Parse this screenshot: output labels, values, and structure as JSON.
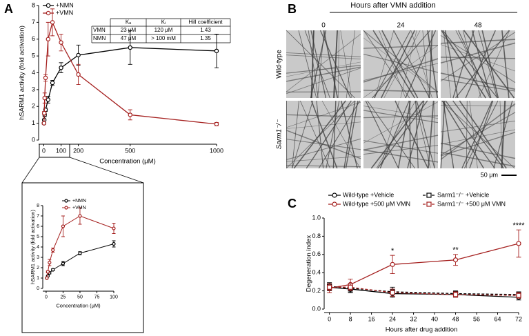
{
  "panel_labels": [
    "A",
    "B",
    "C"
  ],
  "chart_data": [
    {
      "type": "line",
      "ylabel": "hSARM1 activity (fold activation)",
      "xlabel": "Concentration (μM)",
      "x": [
        1,
        2.5,
        5,
        10,
        25,
        50,
        100,
        200,
        500,
        1000
      ],
      "xlim": [
        -30,
        1000
      ],
      "xticks": [
        0,
        100,
        200,
        500,
        1000
      ],
      "ylim": [
        0,
        8
      ],
      "yticks": [
        0,
        1,
        2,
        3,
        4,
        5,
        6,
        7,
        8
      ],
      "series": [
        {
          "name": "+NMN",
          "color": "#000000",
          "values": [
            1.0,
            1.2,
            1.5,
            1.8,
            2.4,
            3.4,
            4.3,
            5.05,
            5.5,
            5.3
          ],
          "errors": [
            0.05,
            0.05,
            0.1,
            0.1,
            0.2,
            0.15,
            0.3,
            0.6,
            1.0,
            1.0
          ]
        },
        {
          "name": "+VMN",
          "color": "#a5201f",
          "values": [
            1.0,
            1.6,
            2.5,
            3.7,
            6.0,
            7.0,
            5.8,
            3.9,
            1.5,
            0.95
          ],
          "errors": [
            0.05,
            0.1,
            0.3,
            0.2,
            1.0,
            0.8,
            0.5,
            0.6,
            0.3,
            0.1
          ]
        }
      ],
      "table": {
        "columns": [
          "Kₐ",
          "Kᵢ",
          "Hill coefficient"
        ],
        "rows": [
          [
            "VMN",
            "23 μM",
            "120 μM",
            "1.43"
          ],
          [
            "NMN",
            "47 μM",
            "> 100 mM",
            "1.35"
          ]
        ]
      }
    },
    {
      "type": "line",
      "ylabel": "hSARM1 activity (fold activation)",
      "xlabel": "Concentration (μM)",
      "x": [
        1,
        2.5,
        5,
        10,
        25,
        50,
        100
      ],
      "xlim": [
        -5,
        100
      ],
      "xticks": [
        0,
        25,
        50,
        75,
        100
      ],
      "ylim": [
        0,
        8
      ],
      "yticks": [
        0,
        1,
        2,
        3,
        4,
        5,
        6,
        7,
        8
      ],
      "series": [
        {
          "name": "+NMN",
          "color": "#000000",
          "values": [
            1.0,
            1.2,
            1.5,
            1.8,
            2.4,
            3.4,
            4.3
          ],
          "errors": [
            0.05,
            0.05,
            0.1,
            0.1,
            0.2,
            0.15,
            0.3
          ]
        },
        {
          "name": "+VMN",
          "color": "#a5201f",
          "values": [
            1.0,
            1.6,
            2.5,
            3.7,
            6.0,
            7.0,
            5.8
          ],
          "errors": [
            0.05,
            0.1,
            0.3,
            0.2,
            1.0,
            0.8,
            0.5
          ]
        }
      ]
    },
    {
      "type": "line",
      "ylabel": "Degeneration index",
      "xlabel": "Hours after drug addition",
      "x": [
        0,
        8,
        24,
        48,
        72
      ],
      "xlim": [
        -2,
        72
      ],
      "xticks": [
        0,
        8,
        16,
        24,
        32,
        40,
        48,
        56,
        64,
        72
      ],
      "ylim": [
        0,
        1
      ],
      "yticks": [
        {
          "value": 0,
          "label": "0.0"
        },
        0.2,
        0.4,
        0.6,
        0.8,
        {
          "value": 1,
          "label": "1.0"
        }
      ],
      "series": [
        {
          "name": "Wild-type +Vehicle",
          "color": "#000000",
          "line_style": "solid",
          "values": [
            0.24,
            0.22,
            0.17,
            0.16,
            0.13
          ],
          "errors": [
            0.03,
            0.03,
            0.04,
            0.03,
            0.03
          ]
        },
        {
          "name": "Wild-type +500 μM VMN",
          "color": "#a5201f",
          "line_style": "solid",
          "values": [
            0.23,
            0.27,
            0.49,
            0.54,
            0.72
          ],
          "errors": [
            0.05,
            0.06,
            0.1,
            0.06,
            0.15
          ]
        },
        {
          "name": "Sarm1⁻/⁻ +Vehicle",
          "color": "#000000",
          "line_style": "dashed",
          "values": [
            0.25,
            0.23,
            0.19,
            0.17,
            0.16
          ],
          "errors": [
            0.04,
            0.05,
            0.05,
            0.03,
            0.03
          ]
        },
        {
          "name": "Sarm1⁻/⁻ +500 μM VMN",
          "color": "#a5201f",
          "line_style": "dashed",
          "values": [
            0.24,
            0.24,
            0.18,
            0.16,
            0.15
          ],
          "errors": [
            0.04,
            0.04,
            0.04,
            0.03,
            0.03
          ]
        }
      ],
      "annotations": [
        {
          "x": 24,
          "text": "*"
        },
        {
          "x": 48,
          "text": "**"
        },
        {
          "x": 72,
          "text": "****"
        }
      ]
    }
  ],
  "panel_b": {
    "title": "Hours after VMN addition",
    "columns": [
      "0",
      "24",
      "48"
    ],
    "rows": [
      "Wild-type",
      "Sarm1⁻/⁻"
    ],
    "scale_bar": "50 μm"
  }
}
